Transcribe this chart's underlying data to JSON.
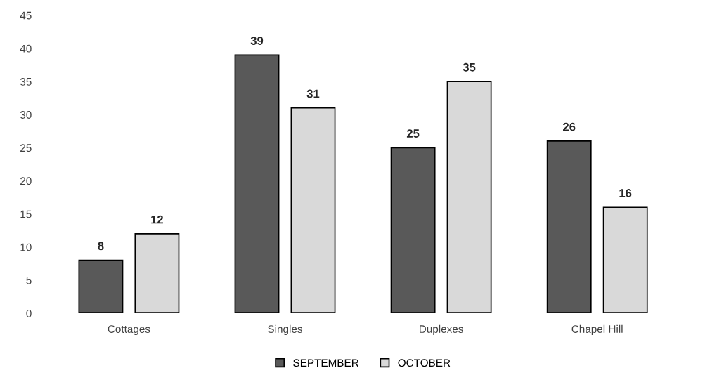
{
  "chart_data": {
    "type": "bar",
    "categories": [
      "Cottages",
      "Singles",
      "Duplexes",
      "Chapel Hill"
    ],
    "series": [
      {
        "name": "SEPTEMBER",
        "color": "#595959",
        "values": [
          8,
          39,
          25,
          26
        ]
      },
      {
        "name": "OCTOBER",
        "color": "#d9d9d9",
        "values": [
          12,
          31,
          35,
          16
        ]
      }
    ],
    "ylim": [
      0,
      45
    ],
    "yticks": [
      0,
      5,
      10,
      15,
      20,
      25,
      30,
      35,
      40,
      45
    ],
    "grid": false,
    "legend": "bottom",
    "data_labels": true
  }
}
